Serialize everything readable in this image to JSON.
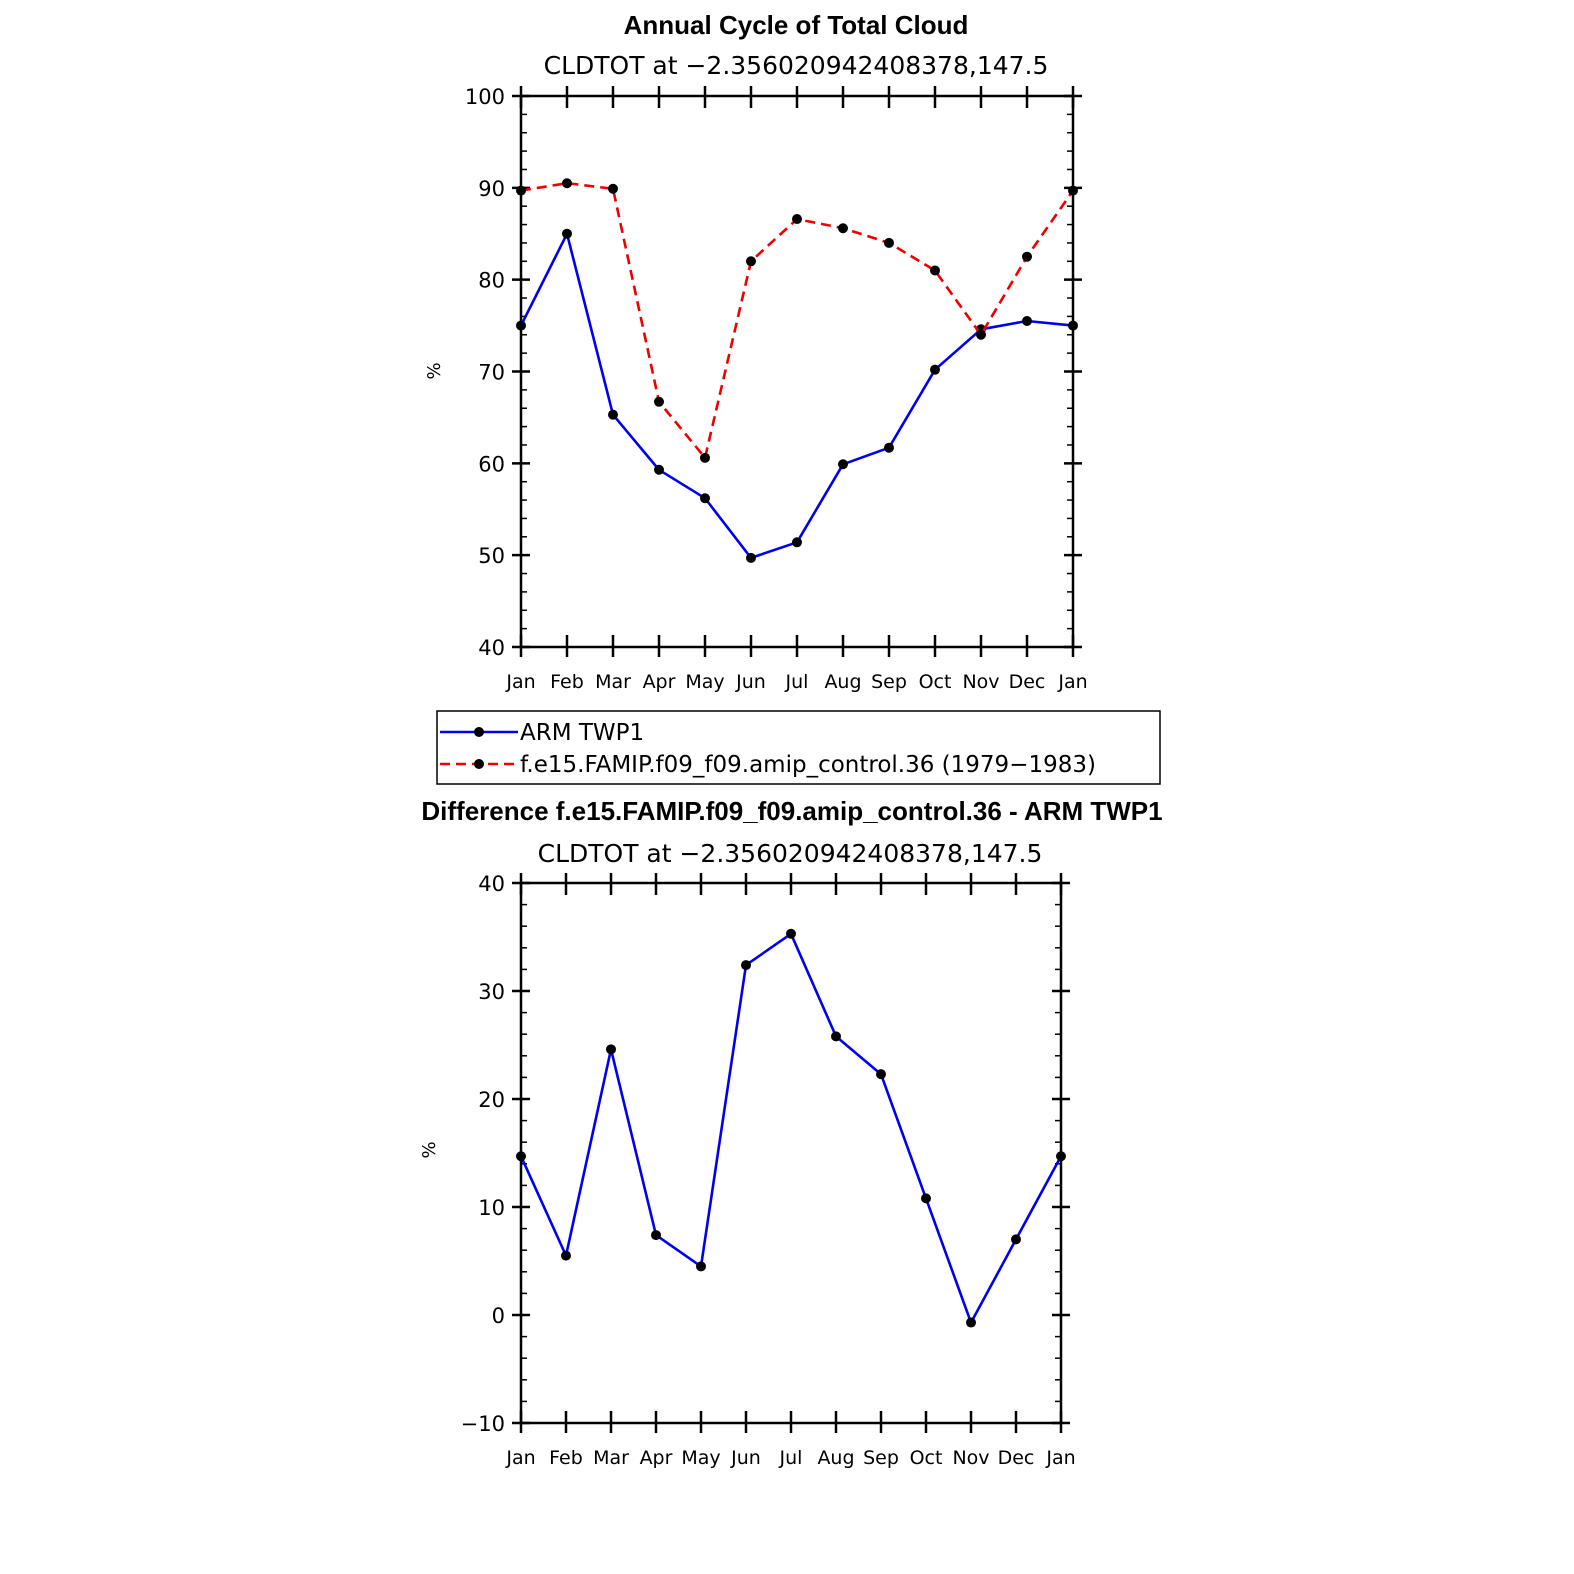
{
  "chart_data": [
    {
      "type": "line",
      "title": "Annual Cycle of Total Cloud",
      "subtitle": "CLDTOT at −2.356020942408378,147.5",
      "ylabel": "%",
      "ylim": [
        40,
        100
      ],
      "yticks": [
        40,
        50,
        60,
        70,
        80,
        90,
        100
      ],
      "categories": [
        "Jan",
        "Feb",
        "Mar",
        "Apr",
        "May",
        "Jun",
        "Jul",
        "Aug",
        "Sep",
        "Oct",
        "Nov",
        "Dec",
        "Jan"
      ],
      "series": [
        {
          "name": "ARM TWP1",
          "color": "#0000ee",
          "dash": "solid",
          "values": [
            75.0,
            85.0,
            65.3,
            59.3,
            56.2,
            49.7,
            51.4,
            59.9,
            61.7,
            70.2,
            74.6,
            75.5,
            75.0
          ]
        },
        {
          "name": "f.e15.FAMIP.f09_f09.amip_control.36 (1979−1983)",
          "color": "#ee0000",
          "dash": "dashed",
          "values": [
            89.7,
            90.5,
            89.9,
            66.7,
            60.6,
            82.0,
            86.6,
            85.6,
            84.0,
            81.0,
            74.0,
            82.5,
            89.7
          ]
        }
      ]
    },
    {
      "type": "line",
      "title": "Difference f.e15.FAMIP.f09_f09.amip_control.36 - ARM TWP1",
      "subtitle": "CLDTOT at −2.356020942408378,147.5",
      "ylabel": "%",
      "ylim": [
        -10,
        40
      ],
      "yticks": [
        -10,
        0,
        10,
        20,
        30,
        40
      ],
      "categories": [
        "Jan",
        "Feb",
        "Mar",
        "Apr",
        "May",
        "Jun",
        "Jul",
        "Aug",
        "Sep",
        "Oct",
        "Nov",
        "Dec",
        "Jan"
      ],
      "series": [
        {
          "name": "Difference",
          "color": "#0000ee",
          "dash": "solid",
          "values": [
            14.7,
            5.5,
            24.6,
            7.4,
            4.5,
            32.4,
            35.3,
            25.8,
            22.3,
            10.8,
            -0.7,
            7.0,
            14.7
          ]
        }
      ]
    }
  ]
}
